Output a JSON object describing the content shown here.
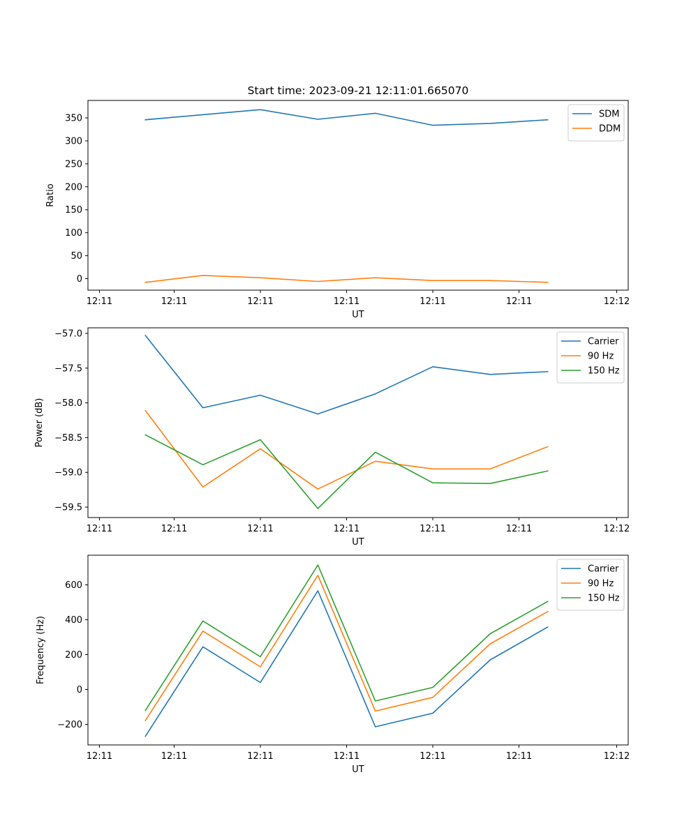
{
  "figure_title": "Start time: 2023-09-21 12:11:01.665070",
  "colors": {
    "blue": "#1f77b4",
    "orange": "#ff7f0e",
    "green": "#2ca02c"
  },
  "chart_data": [
    {
      "type": "line",
      "title": "Start time: 2023-09-21 12:11:01.665070",
      "xlabel": "UT",
      "ylabel": "Ratio",
      "x": [
        1,
        2,
        3,
        4,
        5,
        6,
        7,
        8
      ],
      "xlim": [
        0,
        9.4
      ],
      "xticks": [
        0.2,
        1.5,
        3.0,
        4.5,
        6.0,
        7.5,
        9.2
      ],
      "xtick_labels": [
        "12:11",
        "12:11",
        "12:11",
        "12:11",
        "12:11",
        "12:11",
        "12:12"
      ],
      "ylim": [
        -25,
        388
      ],
      "yticks": [
        0,
        50,
        100,
        150,
        200,
        250,
        300,
        350
      ],
      "ytick_labels": [
        "0",
        "50",
        "100",
        "150",
        "200",
        "250",
        "300",
        "350"
      ],
      "legend_position": "top-right",
      "series": [
        {
          "name": "SDM",
          "color": "#1f77b4",
          "values": [
            346,
            357,
            368,
            347,
            360,
            334,
            338,
            346
          ]
        },
        {
          "name": "DDM",
          "color": "#ff7f0e",
          "values": [
            -8,
            7,
            2,
            -6,
            2,
            -4,
            -4,
            -8
          ]
        }
      ]
    },
    {
      "type": "line",
      "title": "",
      "xlabel": "UT",
      "ylabel": "Power (dB)",
      "x": [
        1,
        2,
        3,
        4,
        5,
        6,
        7,
        8
      ],
      "xlim": [
        0,
        9.4
      ],
      "xticks": [
        0.2,
        1.5,
        3.0,
        4.5,
        6.0,
        7.5,
        9.2
      ],
      "xtick_labels": [
        "12:11",
        "12:11",
        "12:11",
        "12:11",
        "12:11",
        "12:11",
        "12:12"
      ],
      "ylim": [
        -59.65,
        -56.92
      ],
      "yticks": [
        -59.5,
        -59.0,
        -58.5,
        -58.0,
        -57.5,
        -57.0
      ],
      "ytick_labels": [
        "−59.5",
        "−59.0",
        "−58.5",
        "−58.0",
        "−57.5",
        "−57.0"
      ],
      "legend_position": "top-right",
      "series": [
        {
          "name": "Carrier",
          "color": "#1f77b4",
          "values": [
            -57.03,
            -58.07,
            -57.89,
            -58.16,
            -57.87,
            -57.48,
            -57.59,
            -57.55
          ]
        },
        {
          "name": "90 Hz",
          "color": "#ff7f0e",
          "values": [
            -58.11,
            -59.21,
            -58.66,
            -59.24,
            -58.84,
            -58.95,
            -58.95,
            -58.63
          ]
        },
        {
          "name": "150 Hz",
          "color": "#2ca02c",
          "values": [
            -58.46,
            -58.89,
            -58.53,
            -59.52,
            -58.71,
            -59.15,
            -59.16,
            -58.98
          ]
        }
      ]
    },
    {
      "type": "line",
      "title": "",
      "xlabel": "UT",
      "ylabel": "Frequency (Hz)",
      "x": [
        1,
        2,
        3,
        4,
        5,
        6,
        7,
        8
      ],
      "xlim": [
        0,
        9.4
      ],
      "xticks": [
        0.2,
        1.5,
        3.0,
        4.5,
        6.0,
        7.5,
        9.2
      ],
      "xtick_labels": [
        "12:11",
        "12:11",
        "12:11",
        "12:11",
        "12:11",
        "12:11",
        "12:12"
      ],
      "ylim": [
        -318,
        770
      ],
      "yticks": [
        -200,
        0,
        200,
        400,
        600
      ],
      "ytick_labels": [
        "−200",
        "0",
        "200",
        "400",
        "600"
      ],
      "legend_position": "top-right",
      "series": [
        {
          "name": "Carrier",
          "color": "#1f77b4",
          "values": [
            -268,
            245,
            40,
            566,
            -214,
            -136,
            170,
            358
          ]
        },
        {
          "name": "90 Hz",
          "color": "#ff7f0e",
          "values": [
            -178,
            335,
            130,
            655,
            -124,
            -45,
            262,
            447
          ]
        },
        {
          "name": "150 Hz",
          "color": "#2ca02c",
          "values": [
            -120,
            393,
            188,
            714,
            -66,
            12,
            320,
            505
          ]
        }
      ]
    }
  ]
}
